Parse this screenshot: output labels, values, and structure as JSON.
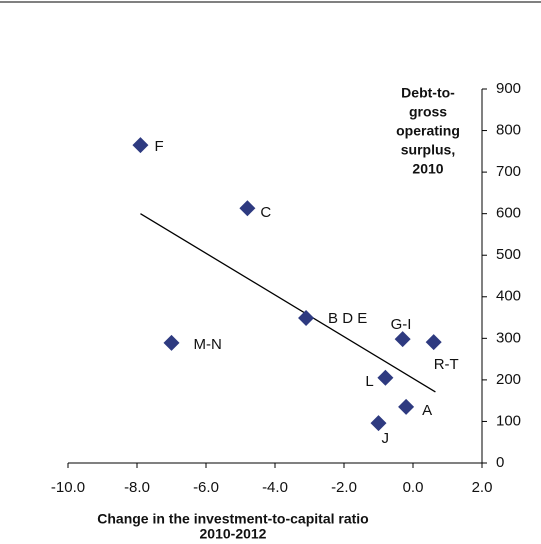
{
  "chart_data": {
    "type": "scatter",
    "x_label": [
      "Change in the investment-to-capital ratio",
      "2010-2012"
    ],
    "y_label": [
      "Debt-to-",
      "gross",
      "operating",
      "surplus,",
      "2010"
    ],
    "series": [
      {
        "color": "#2e3a80",
        "labels": [
          "F",
          "C",
          "B D E",
          "M-N",
          "G-I",
          "R-T",
          "L",
          "A",
          "J"
        ],
        "x": [
          -7.9,
          -4.8,
          -3.1,
          -7.0,
          -0.3,
          0.6,
          -0.8,
          -0.2,
          -1.0
        ],
        "values": [
          765,
          613,
          349,
          289,
          298,
          291,
          205,
          135,
          96
        ]
      }
    ],
    "trendline": {
      "x": [
        -7.9,
        0.65
      ],
      "values": [
        600,
        171
      ],
      "color": "#000000"
    },
    "xlim": [
      -10,
      2
    ],
    "xticks": [
      {
        "value": -10,
        "label": "-10.0"
      },
      {
        "value": -8,
        "label": "-8.0"
      },
      {
        "value": -6,
        "label": "-6.0"
      },
      {
        "value": -4,
        "label": "-4.0"
      },
      {
        "value": -2,
        "label": "-2.0"
      },
      {
        "value": 0,
        "label": "0.0"
      },
      {
        "value": 2,
        "label": "2.0"
      }
    ],
    "ylim": [
      0,
      900
    ],
    "yticks": [
      0,
      100,
      200,
      300,
      400,
      500,
      600,
      700,
      800,
      900
    ]
  }
}
